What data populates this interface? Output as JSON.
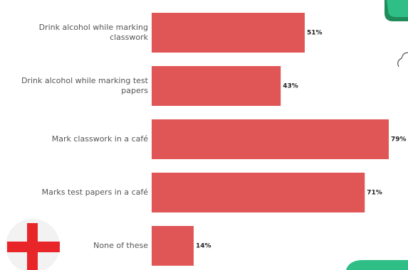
{
  "chart_data": {
    "type": "bar",
    "orientation": "horizontal",
    "color": "#e05656",
    "categories": [
      "Drink alcohol while marking classwork",
      "Drink alcohol while marking test papers",
      "Mark classwork in a café",
      "Marks test papers in a café",
      "None of these"
    ],
    "values": [
      51,
      43,
      79,
      71,
      14
    ],
    "value_labels": [
      "51%",
      "43%",
      "79%",
      "71%",
      "14%"
    ]
  }
}
